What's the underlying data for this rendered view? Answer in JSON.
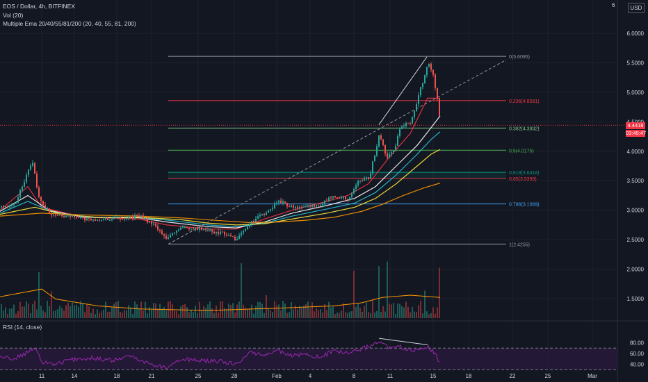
{
  "header": {
    "symbol_line": "EOS / Dollar, 4h, BITFINEX",
    "vol_line": "Vol (20)",
    "ema_line": "Multiple Ema 20/40/55/81/200 (20, 40, 55, 81, 200)",
    "rsi_line": "RSI (14, close)",
    "currency_button": "USD",
    "top_price_label": "6"
  },
  "price_tags": {
    "last_price": "4.4418",
    "countdown": "03:45:47"
  },
  "colors": {
    "background": "#131722",
    "grid": "#1e222d",
    "candle_up": "#26a69a",
    "candle_down": "#ef5350",
    "ema20": "#f23645",
    "ema40": "#ffffff",
    "ema55": "#26c6da",
    "ema81": "#ffeb3b",
    "ema200": "#ff9800",
    "rsi": "#9c27b0",
    "rsi_band": "#2a1b3d"
  },
  "chart_data": {
    "type": "candlestick",
    "title": "EOS / Dollar, 4h, BITFINEX",
    "price_axis": {
      "ticks": [
        "6.0000",
        "5.5000",
        "5.0000",
        "4.5000",
        "4.0000",
        "3.5000",
        "3.0000",
        "2.5000",
        "2.0000",
        "1.5000"
      ],
      "range": [
        1.4,
        6.5
      ]
    },
    "time_axis": {
      "labels": [
        "11",
        "14",
        "18",
        "21",
        "25",
        "28",
        "Feb",
        "4",
        "8",
        "11",
        "15",
        "18",
        "22",
        "25",
        "Mar"
      ]
    },
    "fibonacci": {
      "high": 5.6095,
      "low": 2.4255,
      "levels": [
        {
          "ratio": "0",
          "price": 5.6095,
          "label": "0(5.6095)",
          "color": "#9598a1"
        },
        {
          "ratio": "0.236",
          "price": 4.8581,
          "label": "0.236(4.8581)",
          "color": "#f23645"
        },
        {
          "ratio": "0.382",
          "price": 4.3932,
          "label": "0.382(4.3932)",
          "color": "#81c784"
        },
        {
          "ratio": "0.5",
          "price": 4.0175,
          "label": "0.5(4.0175)",
          "color": "#4caf50"
        },
        {
          "ratio": "0.618",
          "price": 3.6418,
          "label": "0.618(3.6418)",
          "color": "#089981"
        },
        {
          "ratio": "0.65",
          "price": 3.5399,
          "label": "0.65(3.5399)",
          "color": "#f23645"
        },
        {
          "ratio": "0.786",
          "price": 3.1069,
          "label": "0.786(3.1069)",
          "color": "#42a5f5"
        },
        {
          "ratio": "1",
          "price": 2.4255,
          "label": "1(2.4255)",
          "color": "#9598a1"
        }
      ]
    },
    "price_path": [
      [
        0,
        3.05
      ],
      [
        20,
        3.1
      ],
      [
        35,
        3.5
      ],
      [
        45,
        3.85
      ],
      [
        55,
        3.2
      ],
      [
        70,
        2.95
      ],
      [
        90,
        2.9
      ],
      [
        120,
        2.85
      ],
      [
        160,
        2.85
      ],
      [
        200,
        2.9
      ],
      [
        220,
        2.75
      ],
      [
        240,
        2.5
      ],
      [
        255,
        2.7
      ],
      [
        280,
        2.7
      ],
      [
        300,
        2.65
      ],
      [
        320,
        2.6
      ],
      [
        340,
        2.5
      ],
      [
        360,
        2.8
      ],
      [
        380,
        2.95
      ],
      [
        400,
        3.15
      ],
      [
        420,
        3.05
      ],
      [
        440,
        3.05
      ],
      [
        460,
        3.1
      ],
      [
        480,
        3.25
      ],
      [
        500,
        3.2
      ],
      [
        515,
        3.5
      ],
      [
        530,
        3.55
      ],
      [
        545,
        4.3
      ],
      [
        555,
        3.9
      ],
      [
        565,
        4.0
      ],
      [
        575,
        4.4
      ],
      [
        590,
        4.5
      ],
      [
        600,
        4.9
      ],
      [
        610,
        5.3
      ],
      [
        615,
        5.55
      ],
      [
        622,
        5.3
      ],
      [
        628,
        4.9
      ],
      [
        633,
        4.45
      ]
    ],
    "emas": [
      {
        "name": "EMA 20",
        "points": [
          [
            0,
            3.0
          ],
          [
            40,
            3.4
          ],
          [
            60,
            3.05
          ],
          [
            120,
            2.88
          ],
          [
            200,
            2.85
          ],
          [
            240,
            2.75
          ],
          [
            300,
            2.68
          ],
          [
            340,
            2.68
          ],
          [
            380,
            2.85
          ],
          [
            420,
            3.0
          ],
          [
            470,
            3.15
          ],
          [
            500,
            3.25
          ],
          [
            530,
            3.45
          ],
          [
            560,
            3.9
          ],
          [
            590,
            4.3
          ],
          [
            615,
            4.9
          ],
          [
            633,
            4.9
          ]
        ]
      },
      {
        "name": "EMA 40",
        "points": [
          [
            0,
            2.98
          ],
          [
            40,
            3.25
          ],
          [
            70,
            3.0
          ],
          [
            120,
            2.88
          ],
          [
            200,
            2.87
          ],
          [
            240,
            2.8
          ],
          [
            300,
            2.72
          ],
          [
            340,
            2.7
          ],
          [
            380,
            2.8
          ],
          [
            420,
            2.95
          ],
          [
            470,
            3.08
          ],
          [
            510,
            3.2
          ],
          [
            540,
            3.4
          ],
          [
            570,
            3.75
          ],
          [
            600,
            4.1
          ],
          [
            620,
            4.4
          ],
          [
            633,
            4.6
          ]
        ]
      },
      {
        "name": "EMA 55",
        "points": [
          [
            0,
            2.95
          ],
          [
            40,
            3.15
          ],
          [
            80,
            2.95
          ],
          [
            130,
            2.88
          ],
          [
            200,
            2.88
          ],
          [
            250,
            2.82
          ],
          [
            300,
            2.75
          ],
          [
            340,
            2.72
          ],
          [
            380,
            2.78
          ],
          [
            420,
            2.9
          ],
          [
            470,
            3.02
          ],
          [
            510,
            3.12
          ],
          [
            540,
            3.3
          ],
          [
            570,
            3.6
          ],
          [
            600,
            3.95
          ],
          [
            620,
            4.2
          ],
          [
            633,
            4.33
          ]
        ]
      },
      {
        "name": "EMA 81",
        "points": [
          [
            0,
            2.93
          ],
          [
            50,
            3.05
          ],
          [
            90,
            2.93
          ],
          [
            140,
            2.88
          ],
          [
            200,
            2.88
          ],
          [
            260,
            2.84
          ],
          [
            300,
            2.78
          ],
          [
            340,
            2.75
          ],
          [
            380,
            2.77
          ],
          [
            420,
            2.85
          ],
          [
            470,
            2.95
          ],
          [
            510,
            3.05
          ],
          [
            540,
            3.2
          ],
          [
            570,
            3.45
          ],
          [
            600,
            3.75
          ],
          [
            620,
            3.95
          ],
          [
            633,
            4.03
          ]
        ]
      },
      {
        "name": "EMA 200",
        "points": [
          [
            0,
            2.9
          ],
          [
            60,
            2.95
          ],
          [
            120,
            2.92
          ],
          [
            200,
            2.9
          ],
          [
            260,
            2.87
          ],
          [
            320,
            2.82
          ],
          [
            360,
            2.79
          ],
          [
            400,
            2.8
          ],
          [
            440,
            2.83
          ],
          [
            480,
            2.88
          ],
          [
            520,
            2.98
          ],
          [
            550,
            3.1
          ],
          [
            580,
            3.25
          ],
          [
            610,
            3.38
          ],
          [
            633,
            3.46
          ]
        ]
      }
    ],
    "volume": {
      "spikes": [
        [
          55,
          0.6
        ],
        [
          72,
          0.35
        ],
        [
          345,
          0.72
        ],
        [
          383,
          0.3
        ],
        [
          509,
          0.62
        ],
        [
          543,
          0.68
        ],
        [
          556,
          0.74
        ],
        [
          609,
          0.36
        ],
        [
          631,
          0.66
        ]
      ],
      "ma": [
        [
          0,
          0.28
        ],
        [
          60,
          0.38
        ],
        [
          80,
          0.25
        ],
        [
          140,
          0.16
        ],
        [
          200,
          0.12
        ],
        [
          300,
          0.1
        ],
        [
          400,
          0.13
        ],
        [
          480,
          0.16
        ],
        [
          520,
          0.2
        ],
        [
          550,
          0.27
        ],
        [
          590,
          0.3
        ],
        [
          633,
          0.27
        ]
      ]
    },
    "rsi": {
      "ticks": [
        "80.00",
        "60.00",
        "40.00"
      ],
      "upper": 70,
      "lower": 30,
      "path": [
        [
          0,
          55
        ],
        [
          20,
          50
        ],
        [
          40,
          62
        ],
        [
          50,
          70
        ],
        [
          60,
          45
        ],
        [
          80,
          40
        ],
        [
          100,
          48
        ],
        [
          130,
          52
        ],
        [
          160,
          47
        ],
        [
          190,
          55
        ],
        [
          220,
          38
        ],
        [
          240,
          35
        ],
        [
          260,
          50
        ],
        [
          290,
          47
        ],
        [
          320,
          45
        ],
        [
          340,
          40
        ],
        [
          360,
          62
        ],
        [
          380,
          58
        ],
        [
          400,
          65
        ],
        [
          420,
          55
        ],
        [
          440,
          60
        ],
        [
          460,
          52
        ],
        [
          480,
          66
        ],
        [
          500,
          60
        ],
        [
          520,
          68
        ],
        [
          545,
          82
        ],
        [
          560,
          70
        ],
        [
          575,
          72
        ],
        [
          590,
          66
        ],
        [
          605,
          70
        ],
        [
          615,
          74
        ],
        [
          625,
          60
        ],
        [
          633,
          42
        ]
      ]
    }
  }
}
